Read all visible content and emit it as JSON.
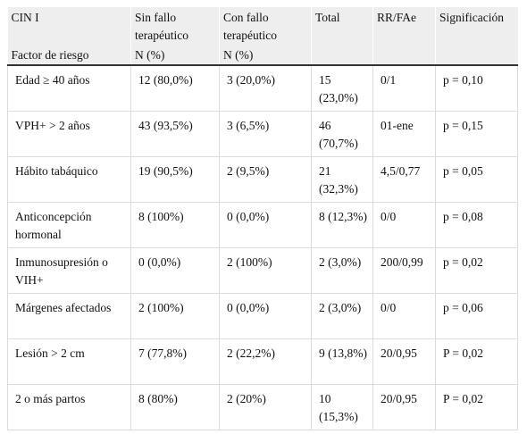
{
  "header": [
    {
      "top": "CIN I",
      "bottom": "Factor de riesgo"
    },
    {
      "top": "Sin fallo terapéutico",
      "bottom": "N (%)"
    },
    {
      "top": "Con fallo terapéutico",
      "bottom": "N (%)"
    },
    {
      "top": "Total"
    },
    {
      "top": "RR/FAe"
    },
    {
      "top": "Significación"
    }
  ],
  "table": {
    "rows": [
      [
        "Edad ≥ 40 años",
        "12 (80,0%)",
        "3 (20,0%)",
        "15 (23,0%)",
        "0/1",
        "p = 0,10"
      ],
      [
        "VPH+ > 2 años",
        "43 (93,5%)",
        "3 (6,5%)",
        "46 (70,7%)",
        "01-ene",
        "p = 0,15"
      ],
      [
        "Hábito tabáquico",
        "19 (90,5%)",
        "2 (9,5%)",
        "21 (32,3%)",
        "4,5/0,77",
        "p = 0,05"
      ],
      [
        "Anticoncepción hormonal",
        "8 (100%)",
        "0 (0,0%)",
        "8 (12,3%)",
        "0/0",
        "p = 0,08"
      ],
      [
        "Inmunosupresión o VIH+",
        "0 (0,0%)",
        "2 (100%)",
        "2 (3,0%)",
        "200/0,99",
        "p = 0,02"
      ],
      [
        "Márgenes afectados",
        "2 (100%)",
        "0 (0,0%)",
        "2 (3,0%)",
        "0/0",
        "p = 0,06"
      ],
      [
        "Lesión > 2 cm",
        "7 (77,8%)",
        "2 (22,2%)",
        "9 (13,8%)",
        "20/0,95",
        "P = 0,02"
      ],
      [
        "2 o más partos",
        "8 (80%)",
        "2 (20%)",
        "10 (15,3%)",
        "20/0,95",
        "P = 0,02"
      ]
    ]
  }
}
